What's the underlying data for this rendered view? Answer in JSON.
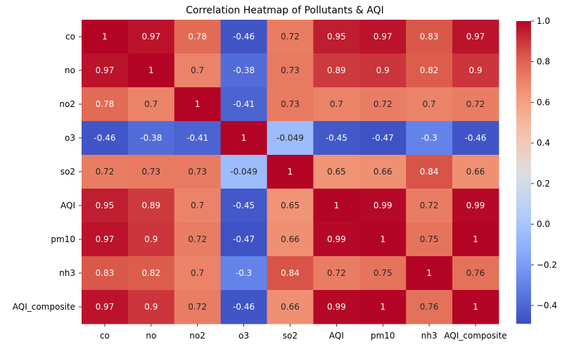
{
  "chart_data": {
    "type": "heatmap",
    "title": "Correlation Heatmap of Pollutants & AQI",
    "x_labels": [
      "co",
      "no",
      "no2",
      "o3",
      "so2",
      "AQI",
      "pm10",
      "nh3",
      "AQI_composite"
    ],
    "y_labels": [
      "co",
      "no",
      "no2",
      "o3",
      "so2",
      "AQI",
      "pm10",
      "nh3",
      "AQI_composite"
    ],
    "values": [
      [
        1,
        0.97,
        0.78,
        -0.46,
        0.72,
        0.95,
        0.97,
        0.83,
        0.97
      ],
      [
        0.97,
        1,
        0.7,
        -0.38,
        0.73,
        0.89,
        0.9,
        0.82,
        0.9
      ],
      [
        0.78,
        0.7,
        1,
        -0.41,
        0.73,
        0.7,
        0.72,
        0.7,
        0.72
      ],
      [
        -0.46,
        -0.38,
        -0.41,
        1,
        -0.049,
        -0.45,
        -0.47,
        -0.3,
        -0.46
      ],
      [
        0.72,
        0.73,
        0.73,
        -0.049,
        1,
        0.65,
        0.66,
        0.84,
        0.66
      ],
      [
        0.95,
        0.89,
        0.7,
        -0.45,
        0.65,
        1,
        0.99,
        0.72,
        0.99
      ],
      [
        0.97,
        0.9,
        0.72,
        -0.47,
        0.66,
        0.99,
        1,
        0.75,
        1
      ],
      [
        0.83,
        0.82,
        0.7,
        -0.3,
        0.84,
        0.72,
        0.75,
        1,
        0.76
      ],
      [
        0.97,
        0.9,
        0.72,
        -0.46,
        0.66,
        0.99,
        1,
        0.76,
        1
      ]
    ],
    "annotations": [
      [
        "1",
        "0.97",
        "0.78",
        "-0.46",
        "0.72",
        "0.95",
        "0.97",
        "0.83",
        "0.97"
      ],
      [
        "0.97",
        "1",
        "0.7",
        "-0.38",
        "0.73",
        "0.89",
        "0.9",
        "0.82",
        "0.9"
      ],
      [
        "0.78",
        "0.7",
        "1",
        "-0.41",
        "0.73",
        "0.7",
        "0.72",
        "0.7",
        "0.72"
      ],
      [
        "-0.46",
        "-0.38",
        "-0.41",
        "1",
        "-0.049",
        "-0.45",
        "-0.47",
        "-0.3",
        "-0.46"
      ],
      [
        "0.72",
        "0.73",
        "0.73",
        "-0.049",
        "1",
        "0.65",
        "0.66",
        "0.84",
        "0.66"
      ],
      [
        "0.95",
        "0.89",
        "0.7",
        "-0.45",
        "0.65",
        "1",
        "0.99",
        "0.72",
        "0.99"
      ],
      [
        "0.97",
        "0.9",
        "0.72",
        "-0.47",
        "0.66",
        "0.99",
        "1",
        "0.75",
        "1"
      ],
      [
        "0.83",
        "0.82",
        "0.7",
        "-0.3",
        "0.84",
        "0.72",
        "0.75",
        "1",
        "0.76"
      ],
      [
        "0.97",
        "0.9",
        "0.72",
        "-0.46",
        "0.66",
        "0.99",
        "1",
        "0.76",
        "1"
      ]
    ],
    "colorscale": "coolwarm",
    "vmin": -0.49,
    "vmax": 1.0,
    "colorbar": {
      "ticks": [
        1.0,
        0.8,
        0.6,
        0.4,
        0.2,
        0.0,
        -0.2,
        -0.4
      ],
      "tick_labels": [
        "1.0",
        "0.8",
        "0.6",
        "0.4",
        "0.2",
        "0.0",
        "−0.2",
        "−0.4"
      ]
    }
  }
}
